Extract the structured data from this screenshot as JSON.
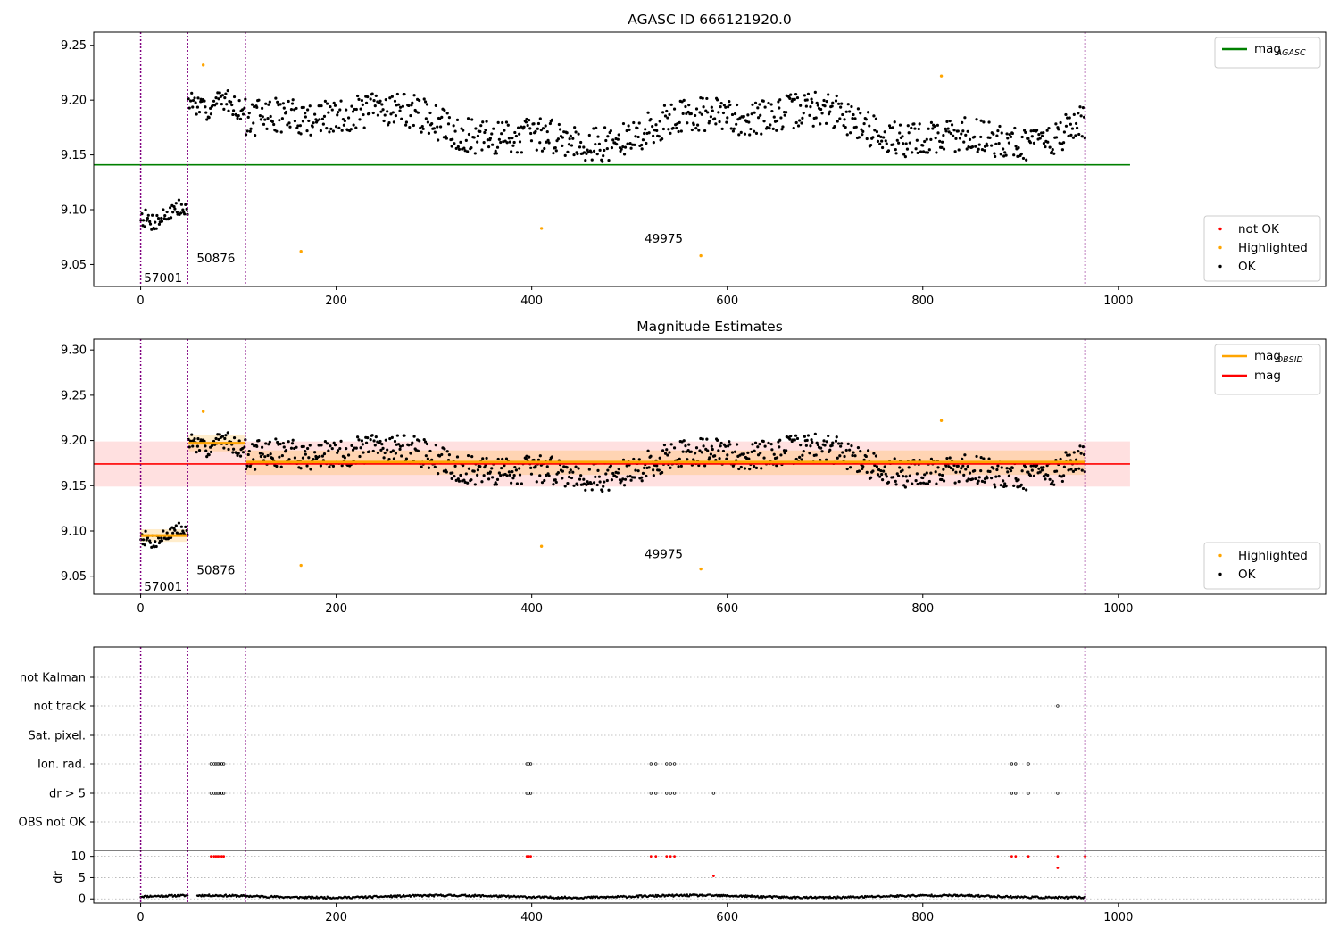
{
  "chart_data": [
    {
      "type": "scatter",
      "title": "AGASC ID 666121920.0",
      "xlim": [
        -48,
        1212
      ],
      "ylim": [
        9.03,
        9.262
      ],
      "xticks": [
        0,
        200,
        400,
        600,
        800,
        1000
      ],
      "yticks": [
        9.05,
        9.1,
        9.15,
        9.2,
        9.25
      ],
      "ytick_labels": [
        "9.05",
        "9.10",
        "9.15",
        "9.20",
        "9.25"
      ],
      "grid": false,
      "obsid_boundaries": [
        0,
        48,
        107,
        966
      ],
      "obsid_labels": [
        {
          "text": "57001",
          "x": 23,
          "y": 9.034
        },
        {
          "text": "50876",
          "x": 77,
          "y": 9.052
        },
        {
          "text": "49975",
          "x": 535,
          "y": 9.07
        }
      ],
      "mag_agasc": {
        "value": 9.141,
        "x_range": [
          -48,
          1012
        ],
        "color": "#008000"
      },
      "legend_lines": [
        {
          "label": "mag",
          "sub": "AGASC",
          "color": "#008000"
        }
      ],
      "legend_lines_position": "upper right",
      "legend_points": [
        {
          "label": "not OK",
          "color": "#ff0000"
        },
        {
          "label": "Highlighted",
          "color": "#ffa500"
        },
        {
          "label": "OK",
          "color": "#000000"
        }
      ],
      "legend_points_position": "lower right",
      "highlighted": [
        [
          64,
          9.232
        ],
        [
          164,
          9.062
        ],
        [
          410,
          9.083
        ],
        [
          573,
          9.058
        ],
        [
          819,
          9.222
        ]
      ],
      "ok_segments": [
        {
          "x": [
            0,
            48
          ],
          "mean": 9.095,
          "amp": 0.011
        },
        {
          "x": [
            49,
            107
          ],
          "mean": 9.196,
          "amp": 0.012
        },
        {
          "x": [
            108,
            966
          ],
          "mean": 9.176,
          "amp": 0.02
        }
      ]
    },
    {
      "type": "scatter",
      "title": "Magnitude Estimates",
      "xlim": [
        -48,
        1212
      ],
      "ylim": [
        9.03,
        9.312
      ],
      "xticks": [
        0,
        200,
        400,
        600,
        800,
        1000
      ],
      "yticks": [
        9.05,
        9.1,
        9.15,
        9.2,
        9.25,
        9.3
      ],
      "ytick_labels": [
        "9.05",
        "9.10",
        "9.15",
        "9.20",
        "9.25",
        "9.30"
      ],
      "grid": false,
      "mag": {
        "value": 9.174,
        "band": [
          9.149,
          9.199
        ],
        "x_range": [
          -48,
          1012
        ],
        "color": "#ff0000"
      },
      "mag_obsid": [
        {
          "x": [
            0,
            48
          ],
          "value": 9.095,
          "band": [
            9.088,
            9.102
          ]
        },
        {
          "x": [
            49,
            107
          ],
          "value": 9.197,
          "band": [
            9.188,
            9.206
          ]
        },
        {
          "x": [
            108,
            966
          ],
          "value": 9.176,
          "band": [
            9.162,
            9.189
          ]
        }
      ],
      "obsid_labels": [
        {
          "text": "57001",
          "x": 23,
          "y": 9.034
        },
        {
          "text": "50876",
          "x": 77,
          "y": 9.052
        },
        {
          "text": "49975",
          "x": 535,
          "y": 9.07
        }
      ],
      "legend_lines": [
        {
          "label": "mag",
          "sub": "OBSID",
          "color": "#ffa500"
        },
        {
          "label": "mag",
          "sub": "",
          "color": "#ff0000"
        }
      ],
      "legend_lines_position": "upper right",
      "legend_points": [
        {
          "label": "Highlighted",
          "color": "#ffa500"
        },
        {
          "label": "OK",
          "color": "#000000"
        }
      ],
      "legend_points_position": "lower right"
    },
    {
      "type": "scatter",
      "title": "",
      "xlim": [
        -48,
        1212
      ],
      "flag_rows": [
        "not Kalman",
        "not track",
        "Sat. pixel.",
        "Ion. rad.",
        "dr > 5",
        "OBS not OK"
      ],
      "flag_points": {
        "not track": [
          938
        ],
        "Ion. rad.": [
          72,
          75,
          77,
          79,
          81,
          83,
          85,
          395,
          397,
          399,
          522,
          527,
          538,
          542,
          546,
          891,
          895,
          908
        ],
        "dr > 5": [
          72,
          75,
          77,
          79,
          81,
          83,
          85,
          395,
          397,
          399,
          522,
          527,
          538,
          542,
          546,
          586,
          891,
          895,
          908,
          938
        ]
      },
      "dr_ylim": [
        -1,
        11.4
      ],
      "dr_yticks": [
        0,
        5,
        10
      ],
      "dr_ylabel": "dr",
      "dr_outliers": [
        [
          72,
          10
        ],
        [
          75,
          10
        ],
        [
          77,
          10
        ],
        [
          79,
          10
        ],
        [
          81,
          10
        ],
        [
          83,
          10
        ],
        [
          85,
          10
        ],
        [
          395,
          10
        ],
        [
          397,
          10
        ],
        [
          399,
          10
        ],
        [
          522,
          10
        ],
        [
          527,
          10
        ],
        [
          538,
          10
        ],
        [
          542,
          10
        ],
        [
          546,
          10
        ],
        [
          586,
          5.4
        ],
        [
          891,
          10
        ],
        [
          895,
          10
        ],
        [
          908,
          10
        ],
        [
          938,
          10
        ],
        [
          938,
          7.3
        ],
        [
          966,
          10
        ]
      ],
      "dr_baseline": {
        "mean": 0.55,
        "amp": 0.45
      },
      "xticks": [
        0,
        200,
        400,
        600,
        800,
        1000
      ]
    }
  ]
}
